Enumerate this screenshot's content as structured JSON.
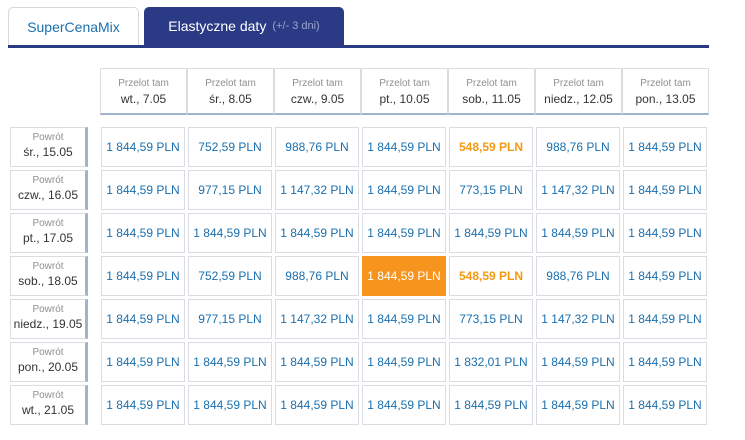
{
  "tabs": [
    {
      "label": "SuperCenaMix",
      "suffix": ""
    },
    {
      "label": "Elastyczne daty",
      "suffix": "(+/- 3 dni)"
    }
  ],
  "colors": {
    "accent": "#2b3a84",
    "link": "#1a6fae",
    "cheapest": "#f39a11",
    "selected": "#f7941d"
  },
  "outbound_label": "Przelot tam",
  "return_label": "Powrót",
  "outbound_dates": [
    "wt., 7.05",
    "śr., 8.05",
    "czw., 9.05",
    "pt., 10.05",
    "sob., 11.05",
    "niedz., 12.05",
    "pon., 13.05"
  ],
  "return_dates": [
    "śr., 15.05",
    "czw., 16.05",
    "pt., 17.05",
    "sob., 18.05",
    "niedz., 19.05",
    "pon., 20.05",
    "wt., 21.05"
  ],
  "prices": [
    [
      "1 844,59 PLN",
      "752,59 PLN",
      "988,76 PLN",
      "1 844,59 PLN",
      "548,59 PLN",
      "988,76 PLN",
      "1 844,59 PLN"
    ],
    [
      "1 844,59 PLN",
      "977,15 PLN",
      "1 147,32 PLN",
      "1 844,59 PLN",
      "773,15 PLN",
      "1 147,32 PLN",
      "1 844,59 PLN"
    ],
    [
      "1 844,59 PLN",
      "1 844,59 PLN",
      "1 844,59 PLN",
      "1 844,59 PLN",
      "1 844,59 PLN",
      "1 844,59 PLN",
      "1 844,59 PLN"
    ],
    [
      "1 844,59 PLN",
      "752,59 PLN",
      "988,76 PLN",
      "1 844,59 PLN",
      "548,59 PLN",
      "988,76 PLN",
      "1 844,59 PLN"
    ],
    [
      "1 844,59 PLN",
      "977,15 PLN",
      "1 147,32 PLN",
      "1 844,59 PLN",
      "773,15 PLN",
      "1 147,32 PLN",
      "1 844,59 PLN"
    ],
    [
      "1 844,59 PLN",
      "1 844,59 PLN",
      "1 844,59 PLN",
      "1 844,59 PLN",
      "1 832,01 PLN",
      "1 844,59 PLN",
      "1 844,59 PLN"
    ],
    [
      "1 844,59 PLN",
      "1 844,59 PLN",
      "1 844,59 PLN",
      "1 844,59 PLN",
      "1 844,59 PLN",
      "1 844,59 PLN",
      "1 844,59 PLN"
    ]
  ],
  "selected_cell": {
    "row": 3,
    "col": 3
  },
  "cheapest_cells": [
    {
      "row": 0,
      "col": 4
    },
    {
      "row": 3,
      "col": 4
    }
  ]
}
